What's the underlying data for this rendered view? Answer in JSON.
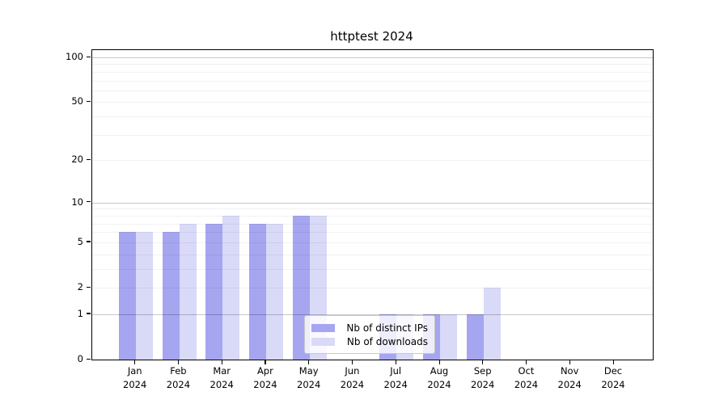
{
  "title": "httptest 2024",
  "legend": {
    "items": [
      {
        "label": "Nb of distinct IPs",
        "color": "#a5a5f0"
      },
      {
        "label": "Nb of downloads",
        "color": "#d9d9f8"
      }
    ]
  },
  "chart_data": {
    "type": "bar",
    "title": "httptest 2024",
    "categories": [
      "Jan",
      "Feb",
      "Mar",
      "Apr",
      "May",
      "Jun",
      "Jul",
      "Aug",
      "Sep",
      "Oct",
      "Nov",
      "Dec"
    ],
    "category_year": "2024",
    "series": [
      {
        "name": "Nb of distinct IPs",
        "color": "#a5a5f0",
        "values": [
          6,
          6,
          7,
          7,
          8,
          0,
          1,
          1,
          1,
          0,
          0,
          0
        ]
      },
      {
        "name": "Nb of downloads",
        "color": "#d9d9f8",
        "values": [
          6,
          7,
          8,
          7,
          8,
          0,
          1,
          1,
          2,
          0,
          0,
          0
        ]
      }
    ],
    "yscale": "log1p",
    "ylim": [
      0,
      112
    ],
    "yticks": [
      0,
      1,
      2,
      5,
      10,
      20,
      50,
      100
    ],
    "grid_major": [
      1,
      10,
      100
    ],
    "grid_minor": [
      2,
      3,
      4,
      5,
      6,
      7,
      8,
      9,
      20,
      30,
      40,
      50,
      60,
      70,
      80,
      90
    ],
    "legend_position": "lower-center",
    "xlabel": "",
    "ylabel": ""
  }
}
